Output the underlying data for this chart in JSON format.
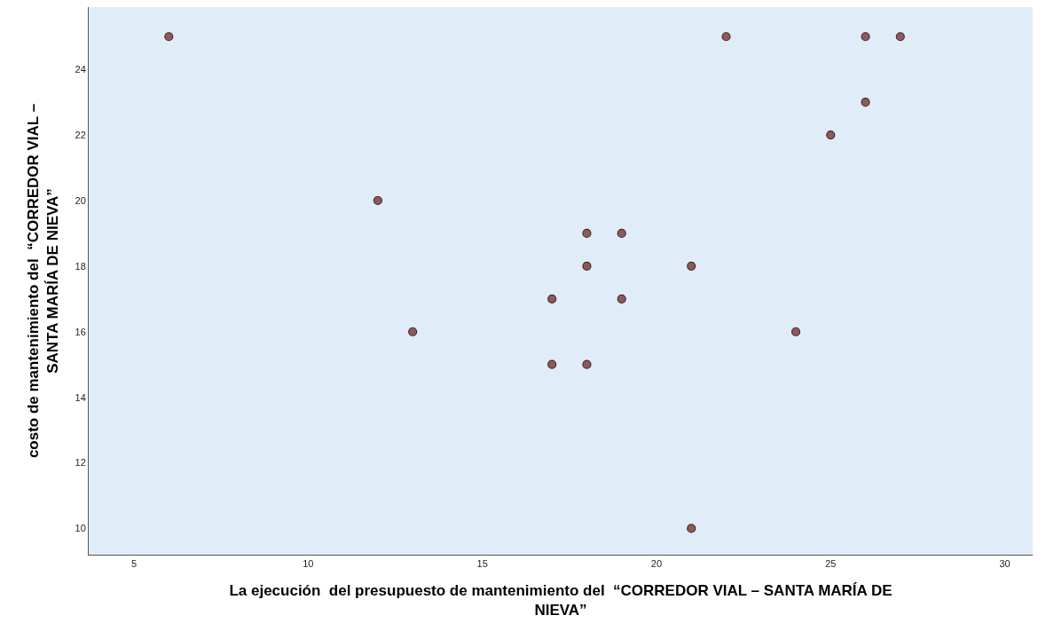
{
  "chart_data": {
    "type": "scatter",
    "xlabel": "La ejecución  del presupuesto de mantenimiento del  “CORREDOR VIAL – SANTA MARÍA DE NIEVA”",
    "ylabel": "costo de mantenimiento del  “CORREDOR VIAL – SANTA MARÍA DE NIEVA”",
    "x": [
      6,
      12,
      13,
      17,
      17,
      18,
      18,
      18,
      19,
      19,
      21,
      21,
      22,
      24,
      25,
      26,
      26,
      27
    ],
    "series": [
      {
        "color": "#8c5a5c",
        "values": [
          25,
          20,
          16,
          17,
          15,
          19,
          18,
          15,
          19,
          17,
          18,
          10,
          25,
          16,
          22,
          25,
          23,
          25
        ]
      }
    ],
    "xlim": [
      3.7,
      30.8
    ],
    "ylim": [
      9.2,
      25.9
    ],
    "xticks": [
      5,
      10,
      15,
      20,
      25,
      30
    ],
    "yticks": [
      10,
      12,
      14,
      16,
      18,
      20,
      22,
      24
    ],
    "marker": "circle",
    "grid": false
  }
}
